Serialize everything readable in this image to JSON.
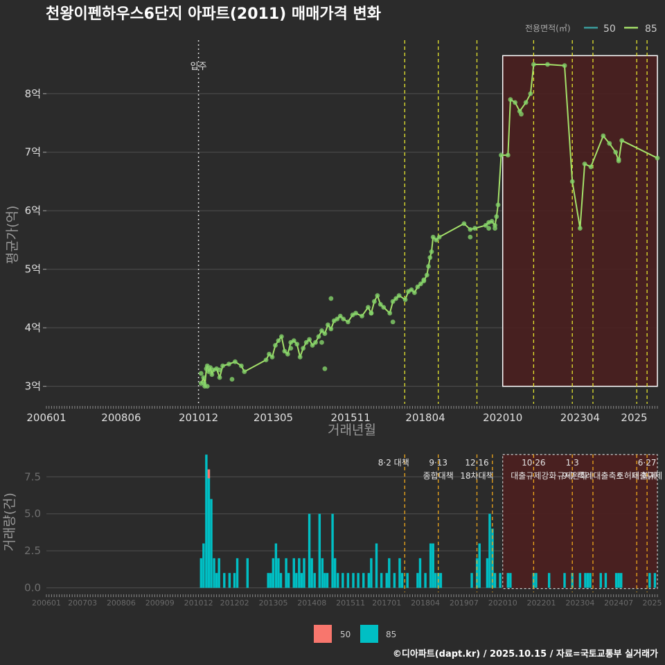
{
  "colors": {
    "background": "#2b2b2b",
    "grid": "#4f4f4f",
    "line85": "#a5e26a",
    "line50": "#3b9e9e",
    "point85": "#84d36a",
    "bar50": "#f8766d",
    "bar85": "#00bfc4",
    "policy_yellow": "#e6e62e",
    "policy_orange": "#f0a81c",
    "highlight_fill": "#4a1f1f",
    "white": "#ffffff"
  },
  "chart_data": [
    {
      "type": "line",
      "title": "천왕이펜하우스6단지 아파트(2011) 매매가격 변화",
      "xlabel": "거래년월",
      "ylabel": "평균가(억)",
      "xlim": [
        2006.0,
        2025.75
      ],
      "ylim": [
        2.7,
        8.95
      ],
      "x_ticks": [
        {
          "v": 2006.0,
          "label": "200601"
        },
        {
          "v": 2008.417,
          "label": "200806"
        },
        {
          "v": 2010.917,
          "label": "201012"
        },
        {
          "v": 2013.333,
          "label": "201305"
        },
        {
          "v": 2015.833,
          "label": "201511"
        },
        {
          "v": 2018.25,
          "label": "201804"
        },
        {
          "v": 2020.75,
          "label": "202010"
        },
        {
          "v": 2023.25,
          "label": "202304"
        },
        {
          "v": 2025.0,
          "label": "2025"
        }
      ],
      "y_ticks": [
        {
          "v": 3,
          "label": "3억"
        },
        {
          "v": 4,
          "label": "4억"
        },
        {
          "v": 5,
          "label": "5억"
        },
        {
          "v": 6,
          "label": "6억"
        },
        {
          "v": 7,
          "label": "7억"
        },
        {
          "v": 8,
          "label": "8억"
        }
      ],
      "legend_title": "전용면적(㎡)",
      "legend": [
        {
          "name": "50",
          "color": "#3b9e9e"
        },
        {
          "name": "85",
          "color": "#a5e26a"
        }
      ],
      "move_in": {
        "x": 2010.917,
        "label": "입주"
      },
      "highlight": {
        "x0": 2020.75,
        "x1": 2025.75,
        "y0": 3.0,
        "y1": 8.65
      },
      "policy_lines": [
        {
          "x": 2017.583,
          "color": "yellow"
        },
        {
          "x": 2018.667,
          "color": "yellow"
        },
        {
          "x": 2019.917,
          "color": "yellow"
        },
        {
          "x": 2021.75,
          "color": "yellow"
        },
        {
          "x": 2023.0,
          "color": "yellow"
        },
        {
          "x": 2023.667,
          "color": "yellow"
        },
        {
          "x": 2025.083,
          "color": "yellow"
        },
        {
          "x": 2025.417,
          "color": "yellow"
        }
      ],
      "series": [
        {
          "name": "85",
          "points": [
            [
              2011.0,
              3.05
            ],
            [
              2011.08,
              3.15
            ],
            [
              2011.12,
              3.0
            ],
            [
              2011.17,
              3.3
            ],
            [
              2011.2,
              3.35
            ],
            [
              2011.25,
              3.25
            ],
            [
              2011.3,
              3.32
            ],
            [
              2011.35,
              3.2
            ],
            [
              2011.4,
              3.28
            ],
            [
              2011.5,
              3.3
            ],
            [
              2011.6,
              3.15
            ],
            [
              2011.7,
              3.35
            ],
            [
              2011.9,
              3.38
            ],
            [
              2012.1,
              3.42
            ],
            [
              2012.3,
              3.35
            ],
            [
              2012.4,
              3.25
            ],
            [
              2013.1,
              3.45
            ],
            [
              2013.2,
              3.55
            ],
            [
              2013.3,
              3.5
            ],
            [
              2013.4,
              3.7
            ],
            [
              2013.5,
              3.78
            ],
            [
              2013.6,
              3.85
            ],
            [
              2013.7,
              3.6
            ],
            [
              2013.8,
              3.55
            ],
            [
              2013.9,
              3.75
            ],
            [
              2014.0,
              3.78
            ],
            [
              2014.1,
              3.72
            ],
            [
              2014.2,
              3.5
            ],
            [
              2014.3,
              3.65
            ],
            [
              2014.4,
              3.75
            ],
            [
              2014.5,
              3.8
            ],
            [
              2014.6,
              3.7
            ],
            [
              2014.7,
              3.75
            ],
            [
              2014.8,
              3.85
            ],
            [
              2014.9,
              3.95
            ],
            [
              2015.0,
              3.9
            ],
            [
              2015.1,
              4.05
            ],
            [
              2015.2,
              3.98
            ],
            [
              2015.3,
              4.12
            ],
            [
              2015.4,
              4.15
            ],
            [
              2015.5,
              4.2
            ],
            [
              2015.6,
              4.15
            ],
            [
              2015.75,
              4.1
            ],
            [
              2015.9,
              4.22
            ],
            [
              2016.0,
              4.25
            ],
            [
              2016.2,
              4.2
            ],
            [
              2016.4,
              4.35
            ],
            [
              2016.5,
              4.25
            ],
            [
              2016.6,
              4.45
            ],
            [
              2016.7,
              4.55
            ],
            [
              2016.8,
              4.4
            ],
            [
              2016.9,
              4.35
            ],
            [
              2017.1,
              4.25
            ],
            [
              2017.2,
              4.45
            ],
            [
              2017.3,
              4.5
            ],
            [
              2017.4,
              4.55
            ],
            [
              2017.6,
              4.48
            ],
            [
              2017.7,
              4.62
            ],
            [
              2017.8,
              4.65
            ],
            [
              2017.9,
              4.6
            ],
            [
              2018.0,
              4.7
            ],
            [
              2018.1,
              4.75
            ],
            [
              2018.2,
              4.8
            ],
            [
              2018.3,
              4.9
            ],
            [
              2018.35,
              5.05
            ],
            [
              2018.4,
              5.2
            ],
            [
              2018.45,
              5.3
            ],
            [
              2018.5,
              5.55
            ],
            [
              2018.6,
              5.5
            ],
            [
              2018.7,
              5.55
            ],
            [
              2019.5,
              5.78
            ],
            [
              2019.7,
              5.68
            ],
            [
              2019.85,
              5.7
            ],
            [
              2020.2,
              5.75
            ],
            [
              2020.3,
              5.8
            ],
            [
              2020.4,
              5.82
            ],
            [
              2020.5,
              5.75
            ],
            [
              2020.55,
              5.9
            ],
            [
              2020.6,
              6.1
            ],
            [
              2020.7,
              6.95
            ],
            [
              2020.92,
              6.95
            ],
            [
              2021.0,
              7.9
            ],
            [
              2021.15,
              7.85
            ],
            [
              2021.3,
              7.7
            ],
            [
              2021.5,
              7.85
            ],
            [
              2021.65,
              8.0
            ],
            [
              2021.75,
              8.5
            ],
            [
              2022.2,
              8.5
            ],
            [
              2022.75,
              8.48
            ],
            [
              2023.0,
              6.5
            ],
            [
              2023.25,
              5.7
            ],
            [
              2023.4,
              6.8
            ],
            [
              2023.6,
              6.75
            ],
            [
              2024.0,
              7.28
            ],
            [
              2024.2,
              7.15
            ],
            [
              2024.4,
              7.0
            ],
            [
              2024.5,
              6.85
            ],
            [
              2024.6,
              7.2
            ],
            [
              2025.75,
              6.9
            ]
          ],
          "scatter_extra": [
            [
              2011.0,
              3.22
            ],
            [
              2011.1,
              3.05
            ],
            [
              2011.2,
              3.0
            ],
            [
              2011.6,
              3.28
            ],
            [
              2012.0,
              3.12
            ],
            [
              2013.9,
              3.65
            ],
            [
              2014.9,
              3.75
            ],
            [
              2015.0,
              3.3
            ],
            [
              2015.2,
              4.5
            ],
            [
              2016.5,
              4.25
            ],
            [
              2017.2,
              4.1
            ],
            [
              2018.2,
              4.82
            ],
            [
              2019.7,
              5.55
            ],
            [
              2020.3,
              5.7
            ],
            [
              2020.5,
              5.7
            ],
            [
              2021.35,
              7.65
            ],
            [
              2024.5,
              6.88
            ]
          ]
        }
      ]
    },
    {
      "type": "bar",
      "ylabel": "거래량(건)",
      "xlim": [
        2006.0,
        2025.75
      ],
      "ylim": [
        -0.3,
        9.2
      ],
      "y_ticks": [
        {
          "v": 0,
          "label": "0.0"
        },
        {
          "v": 2.5,
          "label": "2.5"
        },
        {
          "v": 5,
          "label": "5.0"
        },
        {
          "v": 7.5,
          "label": "7.5"
        }
      ],
      "x_ticks": [
        {
          "v": 2006.0,
          "label": "200601"
        },
        {
          "v": 2007.167,
          "label": "200703"
        },
        {
          "v": 2008.417,
          "label": "200806"
        },
        {
          "v": 2009.667,
          "label": "200909"
        },
        {
          "v": 2010.917,
          "label": "201012"
        },
        {
          "v": 2012.083,
          "label": "201202"
        },
        {
          "v": 2013.333,
          "label": "201305"
        },
        {
          "v": 2014.583,
          "label": "201408"
        },
        {
          "v": 2015.833,
          "label": "201511"
        },
        {
          "v": 2017.0,
          "label": "201701"
        },
        {
          "v": 2018.25,
          "label": "201804"
        },
        {
          "v": 2019.5,
          "label": "201907"
        },
        {
          "v": 2020.75,
          "label": "202010"
        },
        {
          "v": 2022.0,
          "label": "202201"
        },
        {
          "v": 2023.25,
          "label": "202304"
        },
        {
          "v": 2024.5,
          "label": "202407"
        },
        {
          "v": 2025.583,
          "label": "2025"
        }
      ],
      "legend": [
        {
          "name": "50",
          "color": "#f8766d"
        },
        {
          "name": "85",
          "color": "#00bfc4"
        }
      ],
      "highlight": {
        "x0": 2020.75,
        "x1": 2025.75,
        "y0": -0.05,
        "y1": 9.0
      },
      "policy_lines": [
        {
          "x": 2017.583,
          "color": "orange",
          "label1": "8·2 대책",
          "label2": ""
        },
        {
          "x": 2018.667,
          "color": "orange",
          "label1": "9·13",
          "label2": "종합대책"
        },
        {
          "x": 2019.917,
          "color": "orange",
          "label1": "12·16",
          "label2": "18차대책"
        },
        {
          "x": 2020.417,
          "color": "orange",
          "label1": "",
          "label2": ""
        },
        {
          "x": 2021.75,
          "color": "orange",
          "label1": "10·26",
          "label2": "대출규제강화"
        },
        {
          "x": 2023.0,
          "color": "orange",
          "label1": "1·3",
          "label2": "규제완화"
        },
        {
          "x": 2023.667,
          "color": "orange",
          "label1": "",
          "label2": "9·7 특례대출축소"
        },
        {
          "x": 2025.083,
          "color": "orange",
          "label1": "",
          "label2": "토허제 해제"
        },
        {
          "x": 2025.417,
          "color": "orange",
          "label1": "6·27",
          "label2": "대출규제"
        }
      ],
      "bars85": [
        [
          2011.0,
          2
        ],
        [
          2011.08,
          3
        ],
        [
          2011.17,
          9
        ],
        [
          2011.25,
          8
        ],
        [
          2011.33,
          6
        ],
        [
          2011.42,
          2
        ],
        [
          2011.5,
          1
        ],
        [
          2011.58,
          2
        ],
        [
          2011.75,
          1
        ],
        [
          2011.92,
          1
        ],
        [
          2012.08,
          1
        ],
        [
          2012.17,
          2
        ],
        [
          2012.5,
          2
        ],
        [
          2013.17,
          1
        ],
        [
          2013.25,
          1
        ],
        [
          2013.33,
          2
        ],
        [
          2013.42,
          3
        ],
        [
          2013.5,
          2
        ],
        [
          2013.58,
          1
        ],
        [
          2013.75,
          2
        ],
        [
          2013.83,
          1
        ],
        [
          2014.0,
          2
        ],
        [
          2014.08,
          1
        ],
        [
          2014.17,
          2
        ],
        [
          2014.25,
          1
        ],
        [
          2014.33,
          2
        ],
        [
          2014.5,
          5
        ],
        [
          2014.58,
          2
        ],
        [
          2014.67,
          1
        ],
        [
          2014.83,
          5
        ],
        [
          2014.92,
          2
        ],
        [
          2015.0,
          1
        ],
        [
          2015.08,
          1
        ],
        [
          2015.25,
          5
        ],
        [
          2015.33,
          2
        ],
        [
          2015.42,
          1
        ],
        [
          2015.58,
          1
        ],
        [
          2015.75,
          1
        ],
        [
          2015.92,
          1
        ],
        [
          2016.08,
          1
        ],
        [
          2016.25,
          1
        ],
        [
          2016.42,
          1
        ],
        [
          2016.5,
          2
        ],
        [
          2016.67,
          3
        ],
        [
          2016.83,
          1
        ],
        [
          2017.0,
          1
        ],
        [
          2017.08,
          2
        ],
        [
          2017.25,
          1
        ],
        [
          2017.42,
          2
        ],
        [
          2017.5,
          1
        ],
        [
          2017.67,
          1
        ],
        [
          2018.0,
          1
        ],
        [
          2018.08,
          2
        ],
        [
          2018.25,
          1
        ],
        [
          2018.42,
          3
        ],
        [
          2018.5,
          3
        ],
        [
          2018.58,
          1
        ],
        [
          2018.67,
          1
        ],
        [
          2018.75,
          1
        ],
        [
          2019.75,
          1
        ],
        [
          2019.92,
          2
        ],
        [
          2020.0,
          3
        ],
        [
          2020.25,
          2
        ],
        [
          2020.33,
          5
        ],
        [
          2020.42,
          4
        ],
        [
          2020.5,
          1
        ],
        [
          2020.67,
          1
        ],
        [
          2020.92,
          1
        ],
        [
          2021.0,
          1
        ],
        [
          2021.75,
          1
        ],
        [
          2021.83,
          1
        ],
        [
          2022.25,
          1
        ],
        [
          2022.75,
          1
        ],
        [
          2023.0,
          1
        ],
        [
          2023.25,
          1
        ],
        [
          2023.42,
          1
        ],
        [
          2023.5,
          1
        ],
        [
          2023.58,
          1
        ],
        [
          2023.92,
          1
        ],
        [
          2024.08,
          1
        ],
        [
          2024.42,
          1
        ],
        [
          2024.5,
          1
        ],
        [
          2024.58,
          1
        ],
        [
          2025.5,
          1
        ],
        [
          2025.67,
          1
        ]
      ],
      "bars50": [
        [
          2011.25,
          0.6
        ]
      ]
    }
  ],
  "credit": "©디아파트(dapt.kr) / 2025.10.15 / 자료=국토교통부 실거래가"
}
